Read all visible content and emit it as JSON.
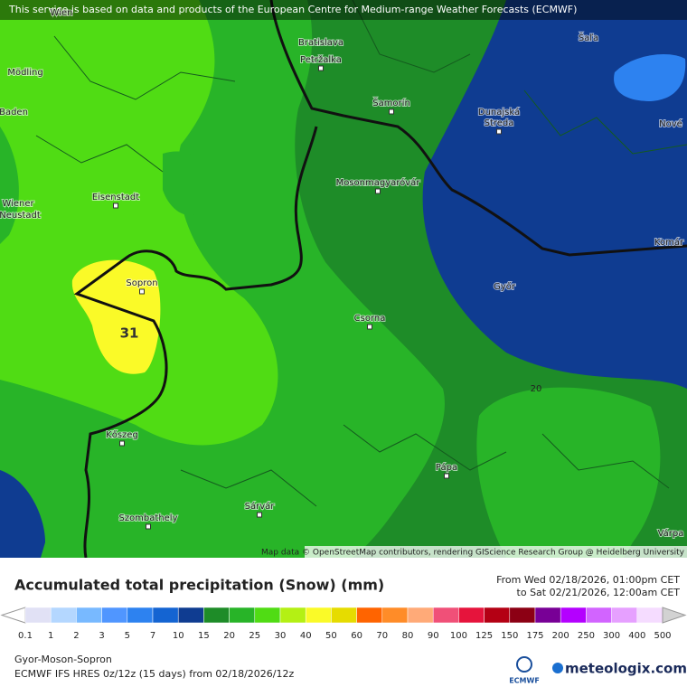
{
  "notice": "This service is based on data and products of the European Centre for Medium-range Weather Forecasts (ECMWF)",
  "attribution": "Map data © OpenStreetMap contributors, rendering GIScience Research Group @ Heidelberg University",
  "places": [
    {
      "label": "Wien"
    },
    {
      "label": "Mödling"
    },
    {
      "label": "Baden"
    },
    {
      "label": "Eisenstadt"
    },
    {
      "label": "Wiener"
    },
    {
      "label": "Neustadt"
    },
    {
      "label": "Sopron"
    },
    {
      "label": "Bratislava"
    },
    {
      "label": "Petržalka"
    },
    {
      "label": "Šamorín"
    },
    {
      "label": "Dunajská"
    },
    {
      "label": "Streda"
    },
    {
      "label": "Šaľa"
    },
    {
      "label": "Nové"
    },
    {
      "label": "Mosonmagyaróvár"
    },
    {
      "label": "Komár"
    },
    {
      "label": "Győr"
    },
    {
      "label": "Csorna"
    },
    {
      "label": "Kőszeg"
    },
    {
      "label": "Pápa"
    },
    {
      "label": "Szombathely"
    },
    {
      "label": "Sárvár"
    },
    {
      "label": "Várpa"
    }
  ],
  "contour_labels": [
    "31",
    "20"
  ],
  "legend": {
    "title": "Accumulated total precipitation (Snow) (mm)",
    "period_from": "From Wed 02/18/2026, 01:00pm CET",
    "period_to": "to Sat 02/21/2026, 12:00am CET",
    "ticks": [
      0.1,
      1,
      2,
      3,
      5,
      7,
      10,
      15,
      20,
      25,
      30,
      40,
      50,
      60,
      70,
      80,
      90,
      100,
      125,
      150,
      175,
      200,
      250,
      300,
      400,
      500
    ],
    "colors": [
      "#e1e1f5",
      "#b4d7ff",
      "#78b9ff",
      "#5096ff",
      "#2d82f0",
      "#1464d2",
      "#0f3c91",
      "#1e8c28",
      "#28b428",
      "#50dc14",
      "#b4f014",
      "#fafa28",
      "#e6dc00",
      "#ff6400",
      "#ff8c28",
      "#ffaa78",
      "#f05078",
      "#e6143c",
      "#b40014",
      "#8c0014",
      "#780096",
      "#b400ff",
      "#d264ff",
      "#e6a0ff",
      "#f5dcff",
      "#d2d2d2"
    ]
  },
  "region": "Gyor-Moson-Sopron",
  "model": "ECMWF IFS HRES 0z/12z (15 days) from 02/18/2026/12z",
  "logos": {
    "ecmwf": "ECMWF",
    "site": "meteologix.com"
  }
}
